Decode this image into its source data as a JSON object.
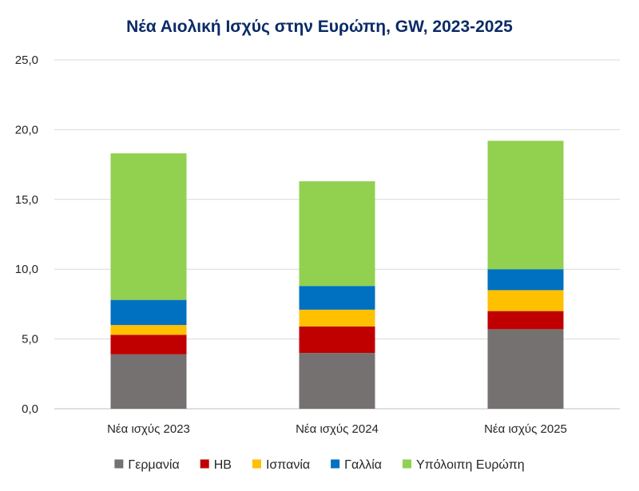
{
  "chart_data": {
    "type": "bar",
    "stacked": true,
    "title": "Νέα Αιολική Ισχύς στην Ευρώπη, GW, 2023-2025",
    "categories": [
      "Νέα ισχύς 2023",
      "Νέα ισχύς 2024",
      "Νέα ισχύς 2025"
    ],
    "series": [
      {
        "name": "Γερμανία",
        "color": "#767171",
        "values": [
          3.9,
          4.0,
          5.7
        ]
      },
      {
        "name": "ΗΒ",
        "color": "#c00000",
        "values": [
          1.4,
          1.9,
          1.3
        ]
      },
      {
        "name": "Ισπανία",
        "color": "#ffc000",
        "values": [
          0.7,
          1.2,
          1.5
        ]
      },
      {
        "name": "Γαλλία",
        "color": "#0070c0",
        "values": [
          1.8,
          1.7,
          1.5
        ]
      },
      {
        "name": "Υπόλοιπη Ευρώπη",
        "color": "#92d050",
        "values": [
          10.5,
          7.5,
          9.2
        ]
      }
    ],
    "ylim": [
      0,
      25
    ],
    "yticks": [
      0,
      5,
      10,
      15,
      20,
      25
    ],
    "ytick_labels": [
      "0,0",
      "5,0",
      "10,0",
      "15,0",
      "20,0",
      "25,0"
    ],
    "xlabel": "",
    "ylabel": "",
    "grid": true,
    "legend_position": "bottom"
  }
}
